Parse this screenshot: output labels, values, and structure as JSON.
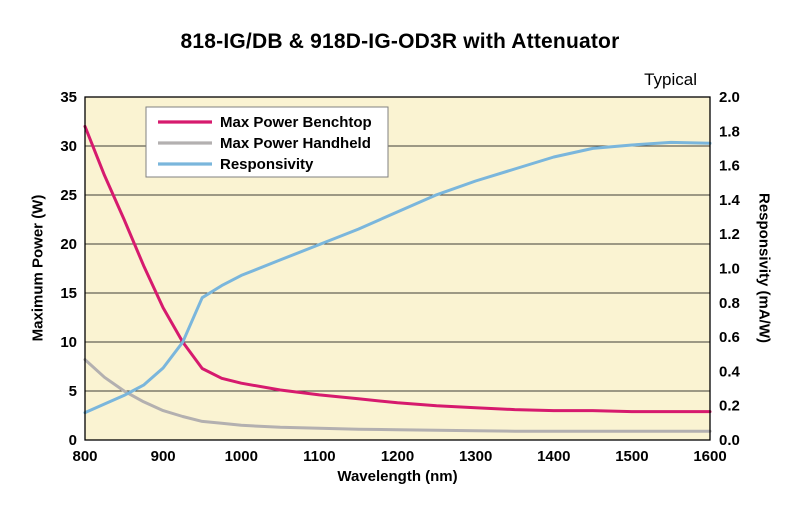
{
  "chart_data": {
    "type": "line",
    "title": "818-IG/DB & 918D-IG-OD3R with Attenuator",
    "annotation": "Typical",
    "xlabel": "Wavelength (nm)",
    "ylabel_left": "Maximum Power (W)",
    "ylabel_right": "Responsivity (mA/W)",
    "xlim": [
      800,
      1600
    ],
    "xticks": [
      800,
      900,
      1000,
      1100,
      1200,
      1300,
      1400,
      1500,
      1600
    ],
    "ylim_left": [
      0,
      35
    ],
    "yticks_left": [
      0,
      5,
      10,
      15,
      20,
      25,
      30,
      35
    ],
    "ylim_right": [
      0,
      2.0
    ],
    "yticks_right": [
      "0.0",
      "0.2",
      "0.4",
      "0.6",
      "0.8",
      "1.0",
      "1.2",
      "1.4",
      "1.6",
      "1.8",
      "2.0"
    ],
    "grid": "horizontal",
    "legend_position": "top-left",
    "plot_bg": "#faf3d2",
    "border_color": "#000000",
    "x": [
      800,
      825,
      850,
      875,
      900,
      925,
      950,
      975,
      1000,
      1050,
      1100,
      1150,
      1200,
      1250,
      1300,
      1350,
      1400,
      1450,
      1500,
      1550,
      1600
    ],
    "series": [
      {
        "name": "Max Power Benchtop",
        "axis": "left",
        "color": "#d61a6e",
        "values": [
          32.0,
          27.0,
          22.5,
          17.8,
          13.5,
          10.0,
          7.3,
          6.3,
          5.8,
          5.1,
          4.6,
          4.2,
          3.8,
          3.5,
          3.3,
          3.1,
          3.0,
          3.0,
          2.9,
          2.9,
          2.9
        ]
      },
      {
        "name": "Max Power Handheld",
        "axis": "left",
        "color": "#b3b0b0",
        "values": [
          8.2,
          6.4,
          5.0,
          3.9,
          3.0,
          2.4,
          1.9,
          1.7,
          1.5,
          1.3,
          1.2,
          1.1,
          1.05,
          1.0,
          0.95,
          0.9,
          0.9,
          0.9,
          0.9,
          0.9,
          0.9
        ]
      },
      {
        "name": "Responsivity",
        "axis": "right",
        "color": "#7ab6dc",
        "values": [
          0.16,
          0.21,
          0.26,
          0.32,
          0.42,
          0.57,
          0.83,
          0.9,
          0.96,
          1.05,
          1.14,
          1.23,
          1.33,
          1.43,
          1.51,
          1.58,
          1.65,
          1.7,
          1.72,
          1.735,
          1.73
        ]
      }
    ]
  }
}
